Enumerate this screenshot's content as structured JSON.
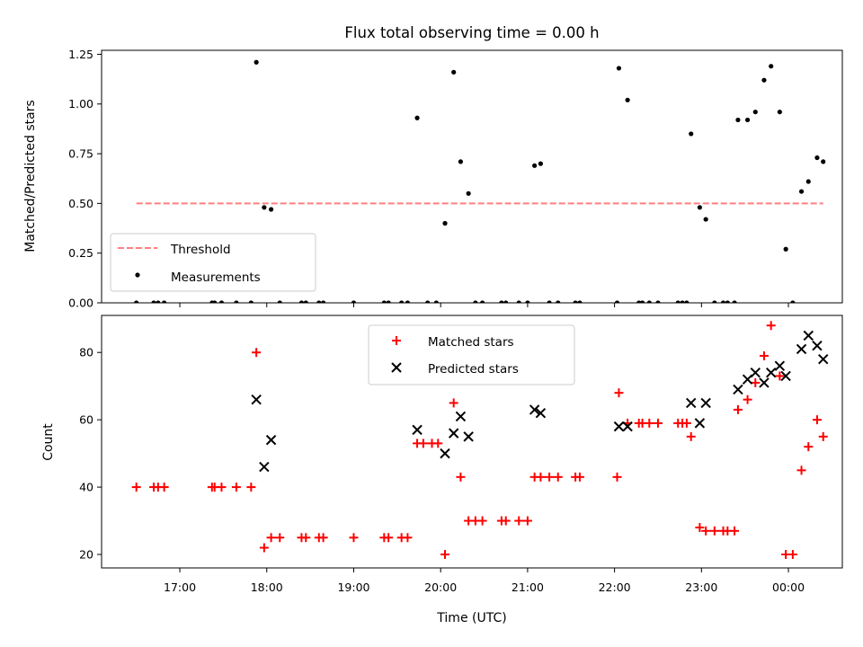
{
  "chart_data": [
    {
      "type": "scatter",
      "title": "Flux total observing time = 0.00 h",
      "xlabel": "",
      "ylabel": "Matched/Predicted stars",
      "xlim": [
        16.1,
        0.62
      ],
      "x_is_time_of_day_hours_wrapping_midnight": true,
      "ylim": [
        0,
        1.27
      ],
      "yticks": [
        "0.00",
        "0.25",
        "0.50",
        "0.75",
        "1.00",
        "1.25"
      ],
      "legend_position": "lower-left",
      "threshold": {
        "name": "Threshold",
        "color": "#ff7f7f",
        "value": 0.5,
        "x_range": [
          16.5,
          0.4
        ]
      },
      "series": [
        {
          "name": "Measurements",
          "color": "#000000",
          "marker": "dot",
          "points": [
            [
              16.5,
              0
            ],
            [
              16.7,
              0
            ],
            [
              16.75,
              0
            ],
            [
              16.82,
              0
            ],
            [
              17.37,
              0
            ],
            [
              17.4,
              0
            ],
            [
              17.48,
              0
            ],
            [
              17.65,
              0
            ],
            [
              17.82,
              0
            ],
            [
              17.88,
              1.21
            ],
            [
              17.97,
              0.48
            ],
            [
              18.05,
              0.47
            ],
            [
              18.15,
              0
            ],
            [
              18.4,
              0
            ],
            [
              18.45,
              0
            ],
            [
              18.6,
              0
            ],
            [
              18.65,
              0
            ],
            [
              19.0,
              0
            ],
            [
              19.35,
              0
            ],
            [
              19.4,
              0
            ],
            [
              19.55,
              0
            ],
            [
              19.62,
              0
            ],
            [
              19.73,
              0.93
            ],
            [
              19.85,
              0
            ],
            [
              19.95,
              0
            ],
            [
              20.05,
              0.4
            ],
            [
              20.15,
              1.16
            ],
            [
              20.23,
              0.71
            ],
            [
              20.32,
              0.55
            ],
            [
              20.4,
              0
            ],
            [
              20.48,
              0
            ],
            [
              20.7,
              0
            ],
            [
              20.75,
              0
            ],
            [
              20.9,
              0
            ],
            [
              21.0,
              0
            ],
            [
              21.08,
              0.69
            ],
            [
              21.15,
              0.7
            ],
            [
              21.25,
              0
            ],
            [
              21.35,
              0
            ],
            [
              21.55,
              0
            ],
            [
              21.6,
              0
            ],
            [
              22.03,
              0
            ],
            [
              22.05,
              1.18
            ],
            [
              22.15,
              1.02
            ],
            [
              22.28,
              0
            ],
            [
              22.32,
              0
            ],
            [
              22.4,
              0
            ],
            [
              22.5,
              0
            ],
            [
              22.73,
              0
            ],
            [
              22.78,
              0
            ],
            [
              22.83,
              0
            ],
            [
              22.88,
              0.85
            ],
            [
              22.98,
              0.48
            ],
            [
              23.05,
              0.42
            ],
            [
              23.15,
              0
            ],
            [
              23.25,
              0
            ],
            [
              23.3,
              0
            ],
            [
              23.38,
              0
            ],
            [
              23.42,
              0.92
            ],
            [
              23.53,
              0.92
            ],
            [
              23.62,
              0.96
            ],
            [
              23.72,
              1.12
            ],
            [
              23.8,
              1.19
            ],
            [
              23.9,
              0.96
            ],
            [
              23.97,
              0.27
            ],
            [
              24.05,
              0
            ],
            [
              24.15,
              0.56
            ],
            [
              24.23,
              0.61
            ],
            [
              24.33,
              0.73
            ],
            [
              24.4,
              0.71
            ]
          ]
        }
      ]
    },
    {
      "type": "scatter",
      "title": "",
      "xlabel": "Time (UTC)",
      "ylabel": "Count",
      "xlim": [
        16.1,
        0.62
      ],
      "x_is_time_of_day_hours_wrapping_midnight": true,
      "ylim": [
        16,
        91
      ],
      "yticks": [
        "20",
        "40",
        "60",
        "80"
      ],
      "xticks": [
        "17:00",
        "18:00",
        "19:00",
        "20:00",
        "21:00",
        "22:00",
        "23:00",
        "00:00"
      ],
      "legend_position": "upper-center",
      "series": [
        {
          "name": "Matched stars",
          "color": "#ff0000",
          "marker": "plus",
          "points": [
            [
              16.5,
              40
            ],
            [
              16.7,
              40
            ],
            [
              16.75,
              40
            ],
            [
              16.82,
              40
            ],
            [
              17.37,
              40
            ],
            [
              17.4,
              40
            ],
            [
              17.48,
              40
            ],
            [
              17.65,
              40
            ],
            [
              17.82,
              40
            ],
            [
              17.88,
              80
            ],
            [
              17.97,
              22
            ],
            [
              18.05,
              25
            ],
            [
              18.15,
              25
            ],
            [
              18.4,
              25
            ],
            [
              18.45,
              25
            ],
            [
              18.6,
              25
            ],
            [
              18.65,
              25
            ],
            [
              19.0,
              25
            ],
            [
              19.35,
              25
            ],
            [
              19.4,
              25
            ],
            [
              19.55,
              25
            ],
            [
              19.62,
              25
            ],
            [
              19.73,
              53
            ],
            [
              19.8,
              53
            ],
            [
              19.9,
              53
            ],
            [
              19.97,
              53
            ],
            [
              20.05,
              20
            ],
            [
              20.15,
              65
            ],
            [
              20.23,
              43
            ],
            [
              20.32,
              30
            ],
            [
              20.4,
              30
            ],
            [
              20.48,
              30
            ],
            [
              20.7,
              30
            ],
            [
              20.75,
              30
            ],
            [
              20.9,
              30
            ],
            [
              21.0,
              30
            ],
            [
              21.08,
              43
            ],
            [
              21.15,
              43
            ],
            [
              21.25,
              43
            ],
            [
              21.35,
              43
            ],
            [
              21.55,
              43
            ],
            [
              21.6,
              43
            ],
            [
              22.03,
              43
            ],
            [
              22.05,
              68
            ],
            [
              22.15,
              59
            ],
            [
              22.28,
              59
            ],
            [
              22.32,
              59
            ],
            [
              22.4,
              59
            ],
            [
              22.5,
              59
            ],
            [
              22.73,
              59
            ],
            [
              22.78,
              59
            ],
            [
              22.83,
              59
            ],
            [
              22.88,
              55
            ],
            [
              22.98,
              28
            ],
            [
              23.05,
              27
            ],
            [
              23.15,
              27
            ],
            [
              23.25,
              27
            ],
            [
              23.3,
              27
            ],
            [
              23.38,
              27
            ],
            [
              23.42,
              63
            ],
            [
              23.53,
              66
            ],
            [
              23.62,
              71
            ],
            [
              23.72,
              79
            ],
            [
              23.8,
              88
            ],
            [
              23.9,
              73
            ],
            [
              23.97,
              20
            ],
            [
              24.05,
              20
            ],
            [
              24.15,
              45
            ],
            [
              24.23,
              52
            ],
            [
              24.33,
              60
            ],
            [
              24.4,
              55
            ]
          ]
        },
        {
          "name": "Predicted stars",
          "color": "#000000",
          "marker": "x",
          "points": [
            [
              17.88,
              66
            ],
            [
              17.97,
              46
            ],
            [
              18.05,
              54
            ],
            [
              19.73,
              57
            ],
            [
              20.05,
              50
            ],
            [
              20.15,
              56
            ],
            [
              20.23,
              61
            ],
            [
              20.32,
              55
            ],
            [
              21.08,
              63
            ],
            [
              21.15,
              62
            ],
            [
              22.05,
              58
            ],
            [
              22.15,
              58
            ],
            [
              22.88,
              65
            ],
            [
              22.98,
              59
            ],
            [
              23.05,
              65
            ],
            [
              23.42,
              69
            ],
            [
              23.53,
              72
            ],
            [
              23.62,
              74
            ],
            [
              23.72,
              71
            ],
            [
              23.8,
              74
            ],
            [
              23.9,
              76
            ],
            [
              23.97,
              73
            ],
            [
              24.15,
              81
            ],
            [
              24.23,
              85
            ],
            [
              24.33,
              82
            ],
            [
              24.4,
              78
            ]
          ]
        }
      ]
    }
  ]
}
